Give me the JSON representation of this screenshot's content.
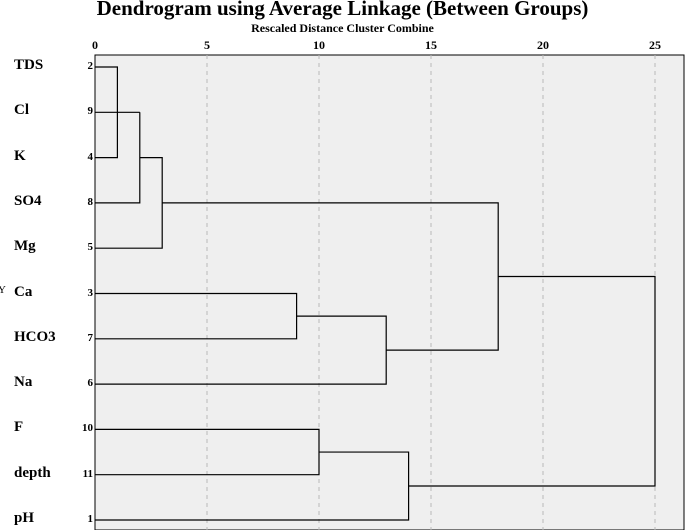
{
  "chart_data": {
    "type": "dendrogram",
    "title": "Dendrogram using Average Linkage (Between Groups)",
    "xlabel": "Rescaled Distance Cluster Combine",
    "xlim": [
      0,
      25
    ],
    "xticks": [
      0,
      5,
      10,
      15,
      20,
      25
    ],
    "grid": true,
    "side_mark": "Y",
    "leaves": [
      {
        "label": "TDS",
        "case": "2"
      },
      {
        "label": "Cl",
        "case": "9"
      },
      {
        "label": "K",
        "case": "4"
      },
      {
        "label": "SO4",
        "case": "8"
      },
      {
        "label": "Mg",
        "case": "5"
      },
      {
        "label": "Ca",
        "case": "3"
      },
      {
        "label": "HCO3",
        "case": "7"
      },
      {
        "label": "Na",
        "case": "6"
      },
      {
        "label": "F",
        "case": "10"
      },
      {
        "label": "depth",
        "case": "11"
      },
      {
        "label": "pH",
        "case": "1"
      }
    ],
    "merges": [
      {
        "children": [
          "TDS",
          "K"
        ],
        "distance": 1.0
      },
      {
        "children": [
          "Cl",
          "m0"
        ],
        "distance": 2.0
      },
      {
        "children": [
          "SO4",
          "m1"
        ],
        "distance": 2.0
      },
      {
        "children": [
          "m2",
          "Mg"
        ],
        "distance": 3.0
      },
      {
        "children": [
          "Ca",
          "HCO3"
        ],
        "distance": 9.0
      },
      {
        "children": [
          "m4",
          "Na"
        ],
        "distance": 13.0
      },
      {
        "children": [
          "m3",
          "m5"
        ],
        "distance": 18.0
      },
      {
        "children": [
          "F",
          "depth"
        ],
        "distance": 10.0
      },
      {
        "children": [
          "m7",
          "pH"
        ],
        "distance": 14.0
      },
      {
        "children": [
          "m6",
          "m8"
        ],
        "distance": 25.0
      }
    ]
  }
}
